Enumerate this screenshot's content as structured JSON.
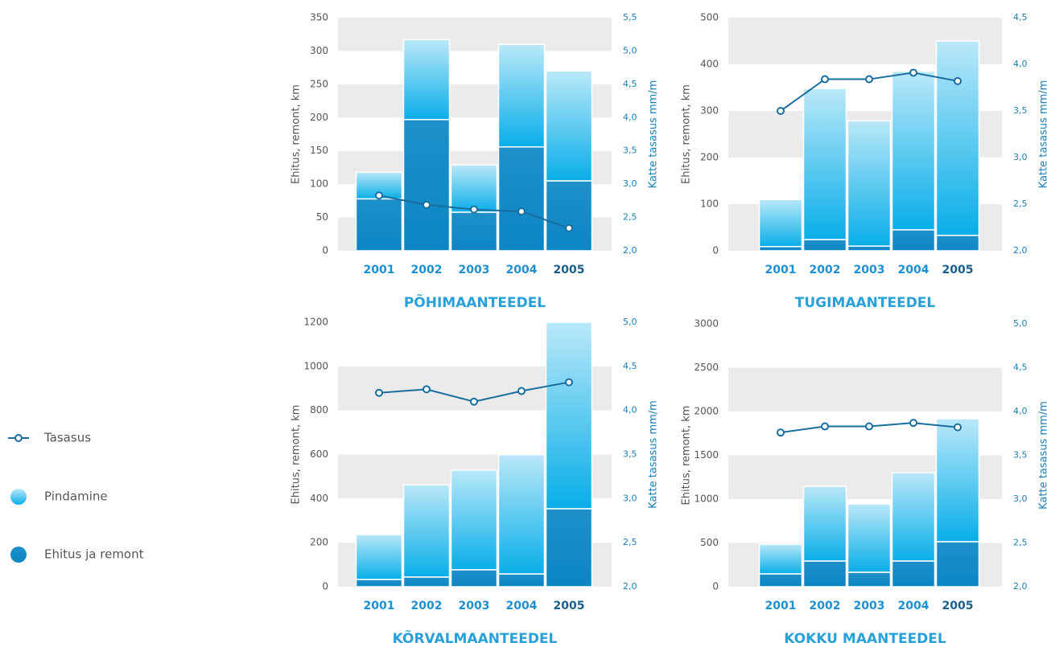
{
  "chart_data": [
    {
      "type": "bar",
      "stacked": true,
      "title": "PÕHIMAANTEEDEL",
      "y_label": "Ehitus, remont, km",
      "y2_label": "Katte tasasus mm/m",
      "categories": [
        "2001",
        "2002",
        "2003",
        "2004",
        "2005"
      ],
      "series": [
        {
          "name": "Ehitus ja remont",
          "color": "#0a86c4",
          "values": [
            78,
            197,
            58,
            156,
            105
          ]
        },
        {
          "name": "Pindamine",
          "color": "#08aee8",
          "values": [
            40,
            120,
            71,
            154,
            165
          ]
        },
        {
          "name": "Tasasus",
          "type": "line",
          "axis": "y2",
          "color": "#1a6e9e",
          "values": [
            2.83,
            2.69,
            2.62,
            2.59,
            2.34
          ]
        }
      ],
      "ylim": [
        0,
        350
      ],
      "yticks": [
        0,
        50,
        100,
        150,
        200,
        250,
        300,
        350
      ],
      "y2lim": [
        2,
        5.5
      ],
      "y2ticks": [
        {
          "value": 2,
          "label": "2,0"
        },
        {
          "value": 2.5,
          "label": "2,5"
        },
        {
          "value": 3,
          "label": "3,0"
        },
        {
          "value": 3.5,
          "label": "3,5"
        },
        {
          "value": 4,
          "label": "4,0"
        },
        {
          "value": 4.5,
          "label": "4,5"
        },
        {
          "value": 5,
          "label": "5,0"
        },
        {
          "value": 5.5,
          "label": "5,5"
        }
      ],
      "grid": true,
      "legend": "left"
    },
    {
      "type": "bar",
      "stacked": true,
      "title": "TUGIMAANTEEDEL",
      "y_label": "Ehitus, remont, km",
      "y2_label": "Katte tasasus mm/m",
      "categories": [
        "2001",
        "2002",
        "2003",
        "2004",
        "2005"
      ],
      "series": [
        {
          "name": "Ehitus ja remont",
          "color": "#0a86c4",
          "values": [
            9,
            24,
            10,
            45,
            33
          ]
        },
        {
          "name": "Pindamine",
          "color": "#08aee8",
          "values": [
            101,
            324,
            269,
            340,
            417
          ]
        },
        {
          "name": "Tasasus",
          "type": "line",
          "axis": "y2",
          "color": "#1a6e9e",
          "values": [
            3.5,
            3.84,
            3.84,
            3.91,
            3.82
          ]
        }
      ],
      "ylim": [
        0,
        500
      ],
      "yticks": [
        0,
        100,
        200,
        300,
        400,
        500
      ],
      "y2lim": [
        2,
        4.5
      ],
      "y2ticks": [
        {
          "value": 2,
          "label": "2,0"
        },
        {
          "value": 2.5,
          "label": "2,5"
        },
        {
          "value": 3,
          "label": "3,0"
        },
        {
          "value": 3.5,
          "label": "3,5"
        },
        {
          "value": 4,
          "label": "4,0"
        },
        {
          "value": 4.5,
          "label": "4,5"
        }
      ],
      "grid": true,
      "legend": "left"
    },
    {
      "type": "bar",
      "stacked": true,
      "title": "KÕRVALMAANTEEDEL",
      "y_label": "Ehitus, remont, km",
      "y2_label": "Katte tasasus mm/m",
      "categories": [
        "2001",
        "2002",
        "2003",
        "2004",
        "2005"
      ],
      "series": [
        {
          "name": "Ehitus ja remont",
          "color": "#0a86c4",
          "values": [
            33,
            44,
            77,
            58,
            354
          ]
        },
        {
          "name": "Pindamine",
          "color": "#08aee8",
          "values": [
            204,
            419,
            452,
            541,
            846
          ]
        },
        {
          "name": "Tasasus",
          "type": "line",
          "axis": "y2",
          "color": "#1a6e9e",
          "values": [
            4.2,
            4.24,
            4.1,
            4.22,
            4.32
          ]
        }
      ],
      "ylim": [
        0,
        1200
      ],
      "yticks": [
        0,
        200,
        400,
        600,
        800,
        1000,
        1200
      ],
      "y2lim": [
        2,
        5
      ],
      "y2ticks": [
        {
          "value": 2,
          "label": "2,0"
        },
        {
          "value": 2.5,
          "label": "2,5"
        },
        {
          "value": 3,
          "label": "3,0"
        },
        {
          "value": 3.5,
          "label": "3,5"
        },
        {
          "value": 4,
          "label": "4,0"
        },
        {
          "value": 4.5,
          "label": "4,5"
        },
        {
          "value": 5,
          "label": "5,0"
        }
      ],
      "grid": true,
      "legend": "left"
    },
    {
      "type": "bar",
      "stacked": true,
      "title": "KOKKU MAANTEEDEL",
      "y_label": "Ehitus, remont, km",
      "y2_label": "Katte tasasus mm/m",
      "categories": [
        "2001",
        "2002",
        "2003",
        "2004",
        "2005"
      ],
      "series": [
        {
          "name": "Ehitus ja remont",
          "color": "#0a86c4",
          "values": [
            147,
            294,
            165,
            294,
            514
          ]
        },
        {
          "name": "Pindamine",
          "color": "#08aee8",
          "values": [
            339,
            853,
            780,
            1009,
            1403
          ]
        },
        {
          "name": "Tasasus",
          "type": "line",
          "axis": "y2",
          "color": "#1a6e9e",
          "values": [
            3.76,
            3.83,
            3.83,
            3.87,
            3.82
          ]
        }
      ],
      "ylim": [
        0,
        3000
      ],
      "yticks": [
        0,
        500,
        1000,
        1500,
        2000,
        2500,
        3000
      ],
      "y2lim": [
        2,
        5
      ],
      "y2ticks": [
        {
          "value": 2,
          "label": "2,0"
        },
        {
          "value": 2.5,
          "label": "2,5"
        },
        {
          "value": 3,
          "label": "3,0"
        },
        {
          "value": 3.5,
          "label": "3,5"
        },
        {
          "value": 4,
          "label": "4,0"
        },
        {
          "value": 4.5,
          "label": "4,5"
        },
        {
          "value": 5,
          "label": "5,0"
        }
      ],
      "grid": true,
      "legend": "left"
    }
  ]
}
